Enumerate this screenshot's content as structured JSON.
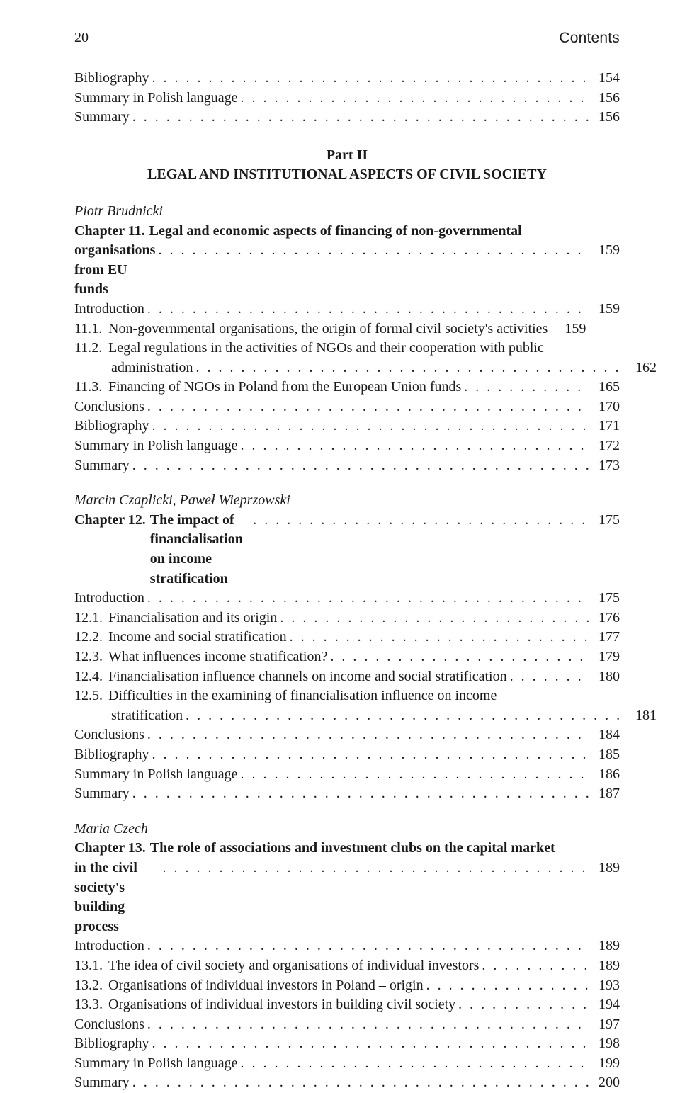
{
  "header": {
    "pageNumber": "20",
    "sectionTitle": "Contents"
  },
  "topEntries": [
    {
      "label": "Bibliography",
      "page": "154"
    },
    {
      "label": "Summary in Polish language",
      "page": "156"
    },
    {
      "label": "Summary",
      "page": "156"
    }
  ],
  "part": {
    "label": "Part II",
    "title": "LEGAL AND INSTITUTIONAL ASPECTS OF CIVIL SOCIETY"
  },
  "ch11": {
    "author": "Piotr Brudnicki",
    "lead": "Chapter 11.",
    "titleL1": "Legal and economic aspects of financing of non-governmental",
    "titleL2": "organisations from EU funds",
    "titlePage": "159",
    "entries": [
      {
        "label": "Introduction",
        "page": "159"
      }
    ],
    "sub": [
      {
        "num": "11.1.",
        "text": "Non-governmental organisations, the origin of formal civil society's activities",
        "page": "159"
      },
      {
        "num": "11.2.",
        "textL1": "Legal regulations in the activities of NGOs and their cooperation with public",
        "textL2": "administration",
        "page": "162"
      },
      {
        "num": "11.3.",
        "text": "Financing of NGOs in Poland from the European Union funds",
        "page": "165"
      }
    ],
    "tail": [
      {
        "label": "Conclusions",
        "page": "170"
      },
      {
        "label": "Bibliography",
        "page": "171"
      },
      {
        "label": "Summary in Polish language",
        "page": "172"
      },
      {
        "label": "Summary",
        "page": "173"
      }
    ]
  },
  "ch12": {
    "author": "Marcin Czaplicki, Paweł Wieprzowski",
    "lead": "Chapter 12.",
    "title": "The impact of financialisation on income stratification",
    "titlePage": "175",
    "entries": [
      {
        "label": "Introduction",
        "page": "175"
      }
    ],
    "sub": [
      {
        "num": "12.1.",
        "text": "Financialisation and its origin",
        "page": "176"
      },
      {
        "num": "12.2.",
        "text": "Income and social stratification",
        "page": "177"
      },
      {
        "num": "12.3.",
        "text": "What influences income stratification?",
        "page": "179"
      },
      {
        "num": "12.4.",
        "text": "Financialisation influence channels on income and social stratification",
        "page": "180"
      },
      {
        "num": "12.5.",
        "textL1": "Difficulties in the examining of financialisation influence on income",
        "textL2": "stratification",
        "page": "181"
      }
    ],
    "tail": [
      {
        "label": "Conclusions",
        "page": "184"
      },
      {
        "label": "Bibliography",
        "page": "185"
      },
      {
        "label": "Summary in Polish language",
        "page": "186"
      },
      {
        "label": "Summary",
        "page": "187"
      }
    ]
  },
  "ch13": {
    "author": "Maria Czech",
    "lead": "Chapter 13.",
    "titleL1": "The role of associations and investment clubs on the capital market",
    "titleL2": "in the civil society's building process",
    "titlePage": "189",
    "entries": [
      {
        "label": "Introduction",
        "page": "189"
      }
    ],
    "sub": [
      {
        "num": "13.1.",
        "text": "The idea of civil society and organisations of individual investors",
        "page": "189"
      },
      {
        "num": "13.2.",
        "text": "Organisations of individual investors in Poland – origin",
        "page": "193"
      },
      {
        "num": "13.3.",
        "text": "Organisations of individual investors in building civil society",
        "page": "194"
      }
    ],
    "tail": [
      {
        "label": "Conclusions",
        "page": "197"
      },
      {
        "label": "Bibliography",
        "page": "198"
      },
      {
        "label": "Summary in Polish language",
        "page": "199"
      },
      {
        "label": "Summary",
        "page": "200"
      }
    ]
  }
}
